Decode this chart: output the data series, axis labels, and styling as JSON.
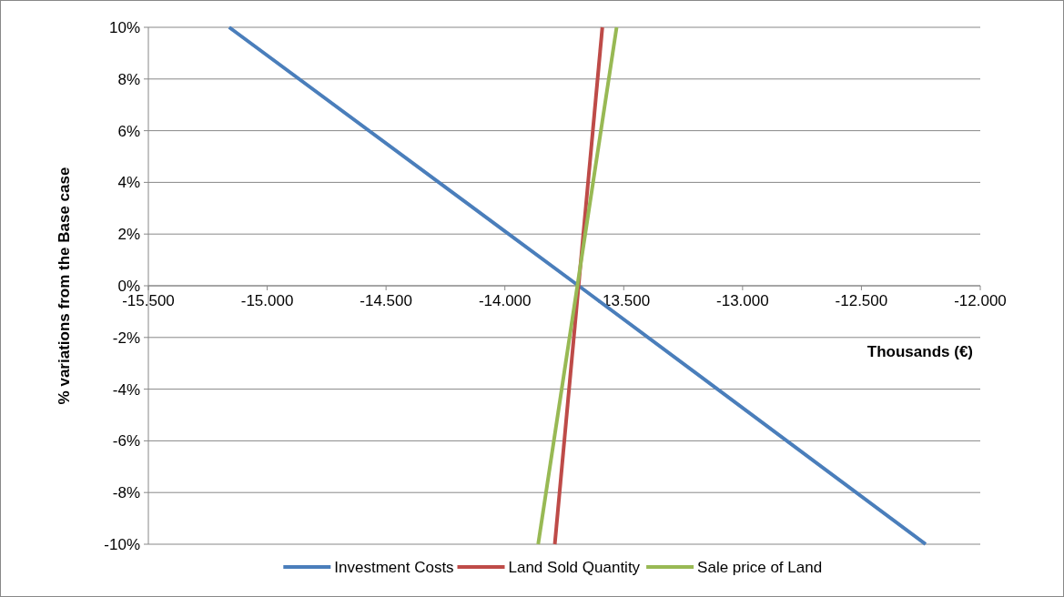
{
  "chart_data": {
    "type": "line",
    "xlabel": "Thousands (€)",
    "ylabel": "% variations from the Base case",
    "xlim": [
      -15500,
      -12000
    ],
    "ylim": [
      -10,
      10
    ],
    "xticks": [
      {
        "value": -15500,
        "label": "-15.500"
      },
      {
        "value": -15000,
        "label": "-15.000"
      },
      {
        "value": -14500,
        "label": "-14.500"
      },
      {
        "value": -14000,
        "label": "-14.000"
      },
      {
        "value": -13500,
        "label": "-13.500"
      },
      {
        "value": -13000,
        "label": "-13.000"
      },
      {
        "value": -12500,
        "label": "-12.500"
      },
      {
        "value": -12000,
        "label": "-12.000"
      }
    ],
    "yticks": [
      {
        "value": -10,
        "label": "-10%"
      },
      {
        "value": -8,
        "label": "-8%"
      },
      {
        "value": -6,
        "label": "-6%"
      },
      {
        "value": -4,
        "label": "-4%"
      },
      {
        "value": -2,
        "label": "-2%"
      },
      {
        "value": 0,
        "label": "0%"
      },
      {
        "value": 2,
        "label": "2%"
      },
      {
        "value": 4,
        "label": "4%"
      },
      {
        "value": 6,
        "label": "6%"
      },
      {
        "value": 8,
        "label": "8%"
      },
      {
        "value": 10,
        "label": "10%"
      }
    ],
    "grid": "y",
    "legend": "bottom",
    "marker": "none",
    "line_style": "solid",
    "series": [
      {
        "name": "Investment Costs",
        "color": "#4a7ebb",
        "x": [
          -15160,
          -13690,
          -12230
        ],
        "values": [
          10,
          0,
          -10
        ]
      },
      {
        "name": "Land Sold Quantity",
        "color": "#be4b48",
        "x": [
          -13790,
          -13590
        ],
        "values": [
          -10,
          10
        ]
      },
      {
        "name": "Sale price of Land",
        "color": "#98b954",
        "x": [
          -13860,
          -13530
        ],
        "values": [
          -10,
          10
        ]
      }
    ]
  }
}
